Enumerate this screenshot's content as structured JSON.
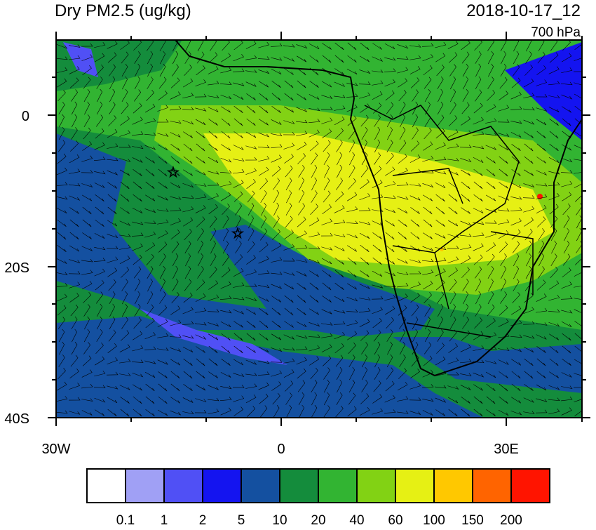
{
  "header": {
    "title": "Dry PM2.5 (ug/kg)",
    "time": "2018-10-17_12",
    "level": "700 hPa"
  },
  "axes": {
    "y_labels": [
      "0",
      "20S",
      "40S"
    ],
    "x_labels": [
      "30W",
      "0",
      "30E"
    ]
  },
  "colorbar": {
    "labels": [
      "0.1",
      "1",
      "2",
      "5",
      "10",
      "20",
      "40",
      "60",
      "100",
      "150",
      "200"
    ],
    "colors": [
      "#ffffff",
      "#a0a0f5",
      "#5050f5",
      "#1414f0",
      "#1450a0",
      "#148c3c",
      "#32b432",
      "#82d214",
      "#e6f014",
      "#ffc800",
      "#ff6400",
      "#ff1400"
    ]
  }
}
